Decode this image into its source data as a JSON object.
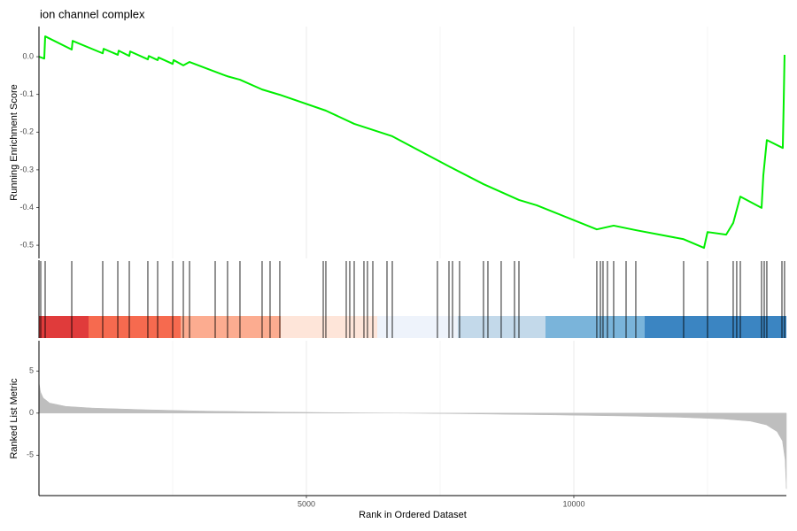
{
  "chart_data": [
    {
      "type": "line",
      "title": "ion channel complex",
      "ylabel": "Running Enrichment Score",
      "xlim": [
        0,
        13974
      ],
      "x": [
        0,
        99,
        116,
        613,
        629,
        1192,
        1209,
        1474,
        1490,
        1689,
        1705,
        2036,
        2053,
        2219,
        2235,
        2500,
        2517,
        2699,
        2815,
        3295,
        3526,
        3758,
        4172,
        4503,
        5364,
        5894,
        6606,
        7666,
        8311,
        8974,
        9305,
        10430,
        10745,
        11159,
        12053,
        12434,
        12500,
        12848,
        12980,
        13113,
        13510,
        13543,
        13609,
        13907,
        13924,
        13940
      ],
      "series": [
        {
          "color": "#00ee00",
          "values": [
            0,
            -0.005,
            0.054,
            0.019,
            0.042,
            0.009,
            0.021,
            0.005,
            0.016,
            0.002,
            0.014,
            -0.007,
            0.002,
            -0.009,
            -0.002,
            -0.019,
            -0.009,
            -0.023,
            -0.014,
            -0.04,
            -0.052,
            -0.061,
            -0.087,
            -0.101,
            -0.143,
            -0.178,
            -0.211,
            -0.291,
            -0.338,
            -0.38,
            -0.394,
            -0.458,
            -0.448,
            -0.46,
            -0.484,
            -0.507,
            -0.465,
            -0.472,
            -0.441,
            -0.371,
            -0.401,
            -0.315,
            -0.221,
            -0.242,
            -0.122,
            0.005
          ]
        }
      ],
      "ylim": [
        -0.535,
        0.08
      ],
      "yticks": [
        {
          "value": 0,
          "label": "0.0"
        },
        -0.1,
        -0.2,
        -0.3,
        -0.4,
        -0.5
      ]
    },
    {
      "type": "rug",
      "xlim": [
        0,
        13974
      ],
      "x": [
        33,
        116,
        613,
        1192,
        1474,
        1689,
        2036,
        2219,
        2500,
        2699,
        2815,
        3295,
        3526,
        3758,
        4172,
        4321,
        4503,
        5315,
        5364,
        5745,
        5811,
        5894,
        6076,
        6142,
        6242,
        6507,
        6606,
        7450,
        7666,
        7732,
        7864,
        8311,
        8394,
        8642,
        8891,
        8974,
        10430,
        10497,
        10546,
        10629,
        10745,
        10977,
        11159,
        12053,
        12500,
        12980,
        13046,
        13113,
        13510,
        13560,
        13609,
        13891,
        13940
      ],
      "color": "#000000",
      "bin_edges": [
        0,
        927,
        2649,
        4520,
        6325,
        7831,
        9470,
        11325,
        13974
      ],
      "bin_colors": [
        "#e03b3b",
        "#f66a4f",
        "#fcac90",
        "#fee5d9",
        "#eef3fb",
        "#c3d9ea",
        "#7ab4da",
        "#3b85c2"
      ]
    },
    {
      "type": "area",
      "xlabel": "Rank in Ordered Dataset",
      "ylabel": "Ranked List Metric",
      "xlim": [
        0,
        13974
      ],
      "xticks": [
        5000,
        10000
      ],
      "x_minor_ticks": [
        2500,
        7500,
        12500
      ],
      "x": [
        1,
        30,
        80,
        200,
        500,
        1000,
        2000,
        3000,
        4500,
        6000,
        6800,
        8000,
        9500,
        11000,
        12000,
        12800,
        13300,
        13600,
        13800,
        13900,
        13950,
        13974
      ],
      "values": [
        3.6,
        2.5,
        1.8,
        1.2,
        0.8,
        0.6,
        0.4,
        0.25,
        0.12,
        0.03,
        0,
        -0.08,
        -0.2,
        -0.35,
        -0.5,
        -0.7,
        -0.95,
        -1.4,
        -2.2,
        -3.3,
        -5.5,
        -9
      ],
      "color": "#bebebe",
      "ylim": [
        -9.8,
        8.6
      ],
      "yticks": [
        5,
        0,
        -5
      ]
    }
  ]
}
